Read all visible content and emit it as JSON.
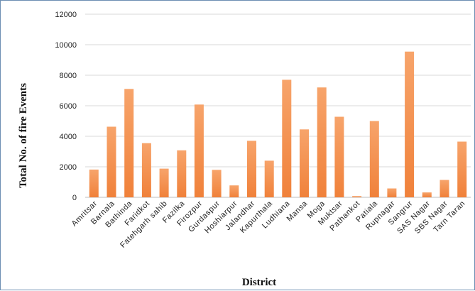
{
  "chart_data": {
    "type": "bar",
    "title": "",
    "xlabel": "District",
    "ylabel": "Total No. of fire Events",
    "ylim": [
      0,
      12000
    ],
    "yticks": [
      0,
      2000,
      4000,
      6000,
      8000,
      10000,
      12000
    ],
    "grid": true,
    "legend": "none",
    "bar_color": "#f0813a",
    "bar_color_light": "#f7a46b",
    "categories": [
      "Amritsar",
      "Barnala",
      "Bathinda",
      "Faridkot",
      "Fatehgarh sahib",
      "Fazilka",
      "Firozpur",
      "Gurdaspur",
      "Hoshiarpur",
      "Jalandhar",
      "Kapurthala",
      "Ludhiana",
      "Mansa",
      "Moga",
      "Muktsar",
      "Pathankot",
      "Patiala",
      "Rupnagar",
      "Sangrur",
      "SAS Nagar",
      "SBS Nagar",
      "Tarn Taran"
    ],
    "values": [
      1820,
      4630,
      7100,
      3550,
      1880,
      3080,
      6080,
      1800,
      780,
      3700,
      2400,
      7700,
      4450,
      7200,
      5280,
      80,
      5000,
      580,
      9550,
      320,
      1140,
      3650
    ]
  }
}
